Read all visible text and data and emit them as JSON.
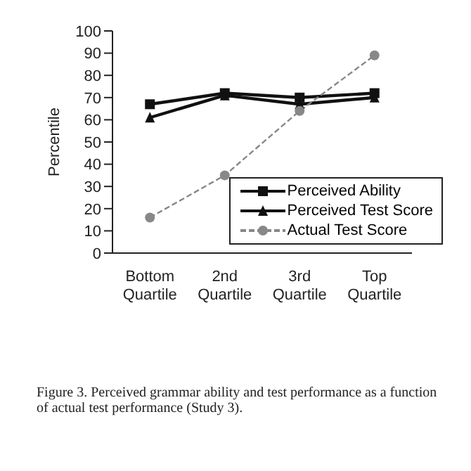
{
  "chart_data": {
    "type": "line",
    "ylabel": "Percentile",
    "categories": [
      "Bottom Quartile",
      "2nd Quartile",
      "3rd Quartile",
      "Top Quartile"
    ],
    "series": [
      {
        "name": "Perceived Ability",
        "color": "#111111",
        "values": [
          67,
          72,
          70,
          72
        ],
        "marker": "square",
        "line_style": "solid"
      },
      {
        "name": "Perceived Test Score",
        "color": "#111111",
        "values": [
          61,
          71,
          67,
          70
        ],
        "marker": "triangle",
        "line_style": "solid"
      },
      {
        "name": "Actual Test Score",
        "color": "#888888",
        "values": [
          16,
          35,
          64,
          89
        ],
        "marker": "circle",
        "line_style": "dashed"
      }
    ],
    "ylim": [
      0,
      100
    ],
    "yticks": [
      0,
      10,
      20,
      30,
      40,
      50,
      60,
      70,
      80,
      90,
      100
    ],
    "grid": false,
    "legend": "bottom right",
    "annotations": [
      "Figure 3. Perceived grammar ability and test performance as a function of actual test performance (Study 3)."
    ]
  }
}
